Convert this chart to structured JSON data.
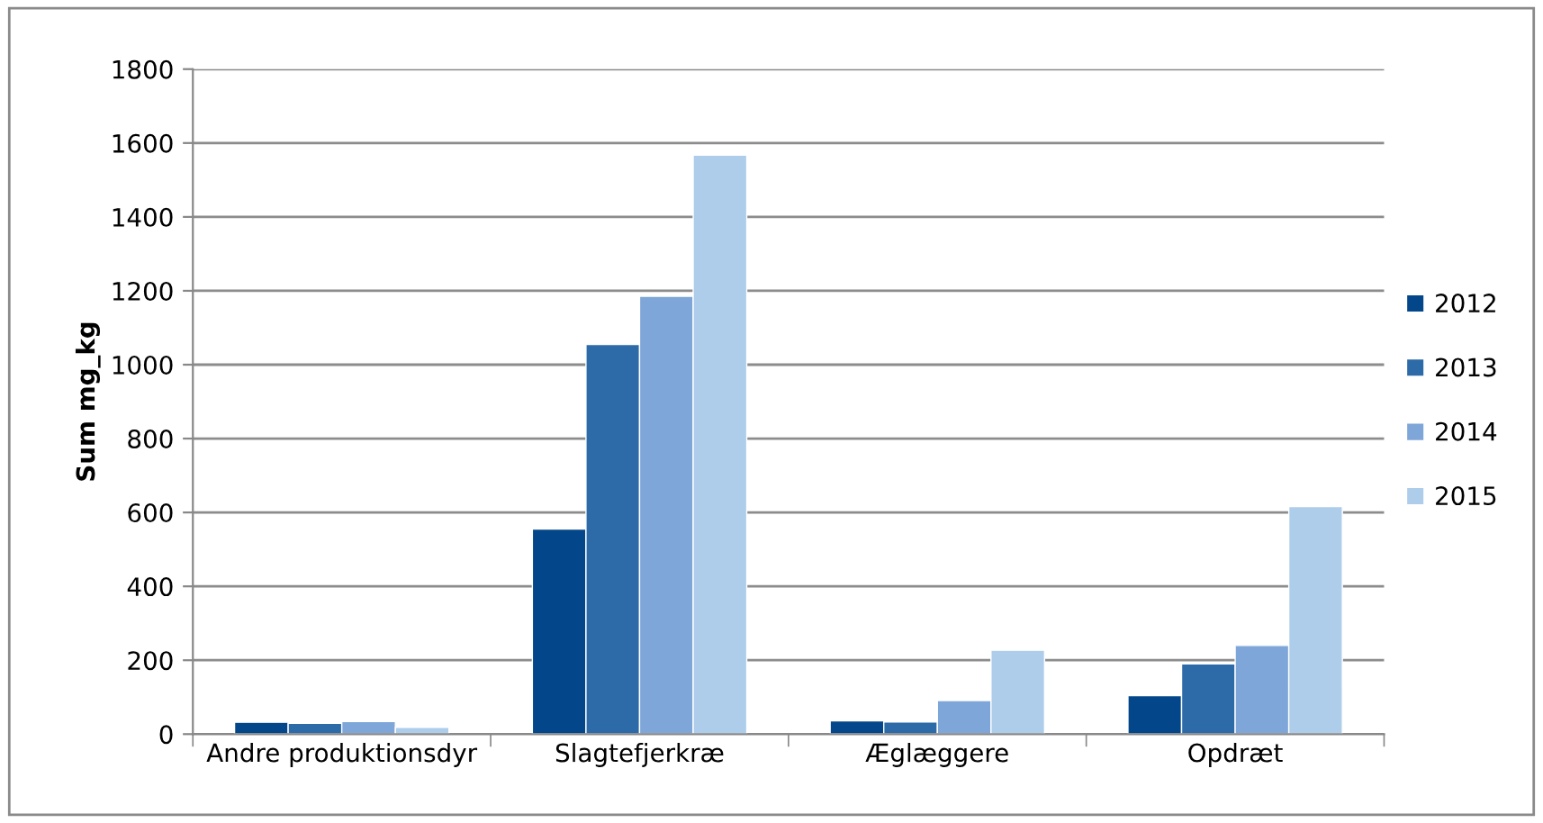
{
  "chart_data": {
    "type": "bar",
    "ylabel": "Sum mg_kg",
    "categories": [
      "Andre produktionsdyr",
      "Slagtefjerkræ",
      "Æglæggere",
      "Opdræt"
    ],
    "series": [
      {
        "name": "2012",
        "color": "#03478a",
        "values": [
          32,
          555,
          36,
          104
        ]
      },
      {
        "name": "2013",
        "color": "#2c6ba8",
        "values": [
          29,
          1055,
          33,
          190
        ]
      },
      {
        "name": "2014",
        "color": "#7ea6d8",
        "values": [
          34,
          1185,
          91,
          240
        ]
      },
      {
        "name": "2015",
        "color": "#aecdeb",
        "values": [
          18,
          1567,
          227,
          616
        ]
      }
    ],
    "ylim": [
      0,
      1800
    ],
    "yticks": [
      0,
      200,
      400,
      600,
      800,
      1000,
      1200,
      1400,
      1600,
      1800
    ],
    "grid": "y",
    "legend": "right"
  }
}
